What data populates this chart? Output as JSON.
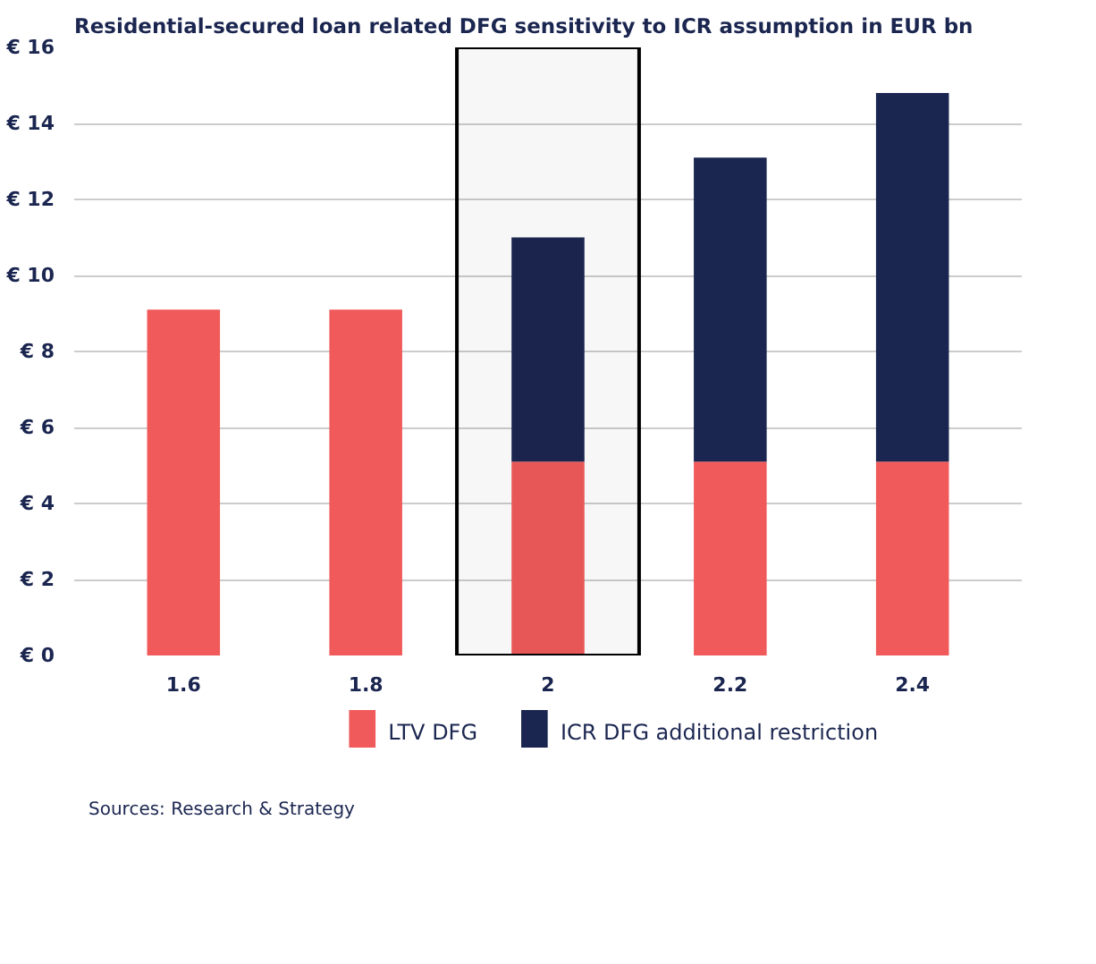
{
  "chart_data": {
    "type": "bar",
    "title": "Residential-secured loan related DFG sensitivity to ICR assumption in EUR bn",
    "categories": [
      "1.6",
      "1.8",
      "2",
      "2.2",
      "2.4"
    ],
    "stacked": true,
    "series": [
      {
        "name": "LTV DFG",
        "color": "#f05a5a",
        "values": [
          9.1,
          9.1,
          5.1,
          5.1,
          5.1
        ]
      },
      {
        "name": "ICR DFG additional restriction",
        "color": "#1b2650",
        "values": [
          null,
          null,
          5.9,
          8.0,
          9.7
        ]
      }
    ],
    "ylim": [
      0,
      16
    ],
    "yticks": [
      {
        "value": 0,
        "label": "€ 0"
      },
      {
        "value": 2,
        "label": "€ 2"
      },
      {
        "value": 4,
        "label": "€ 4"
      },
      {
        "value": 6,
        "label": "€ 6"
      },
      {
        "value": 8,
        "label": "€ 8"
      },
      {
        "value": 10,
        "label": "€ 10"
      },
      {
        "value": 12,
        "label": "€ 12"
      },
      {
        "value": 14,
        "label": "€ 14"
      },
      {
        "value": 16,
        "label": "€ 16"
      }
    ],
    "grid": "y",
    "legend": "bottom",
    "bands": [
      {
        "axis": "x",
        "from": "2",
        "to": "2",
        "color": "#000000"
      }
    ],
    "annotations": [
      "Sources: Research & Strategy"
    ]
  }
}
